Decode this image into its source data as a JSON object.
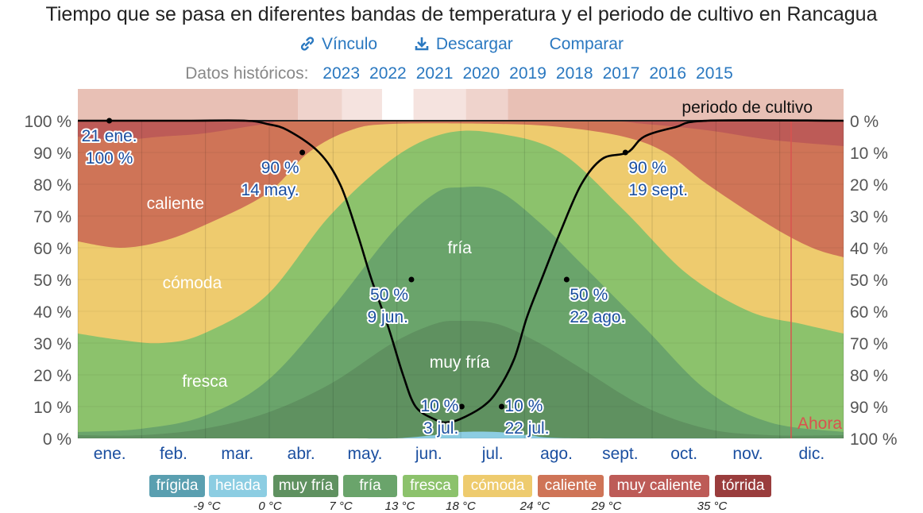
{
  "title": "Tiempo que se pasa en diferentes bandas de temperatura y el periodo de cultivo en Rancagua",
  "actions": {
    "link": "Vínculo",
    "download": "Descargar",
    "compare": "Comparar"
  },
  "historical": {
    "label": "Datos históricos:",
    "years": [
      "2023",
      "2022",
      "2021",
      "2020",
      "2019",
      "2018",
      "2017",
      "2016",
      "2015"
    ]
  },
  "colors": {
    "frigida": "#5a9fb0",
    "helada": "#8ccde2",
    "muy_fria": "#5f9160",
    "fria": "#6aa46b",
    "fresca": "#8cc26c",
    "comoda": "#eecb6e",
    "caliente": "#cf7457",
    "muy_caliente": "#bd5b57",
    "torrida": "#9a3d3d",
    "link": "#2a78c0",
    "now": "#d9534f"
  },
  "chart_data": {
    "type": "area",
    "title": "Tiempo que se pasa en diferentes bandas de temperatura y el periodo de cultivo en Rancagua",
    "categories": [
      "ene.",
      "feb.",
      "mar.",
      "abr.",
      "may.",
      "jun.",
      "jul.",
      "ago.",
      "sept.",
      "oct.",
      "nov.",
      "dic."
    ],
    "y_left_ticks": [
      "100 %",
      "90 %",
      "80 %",
      "70 %",
      "60 %",
      "50 %",
      "40 %",
      "30 %",
      "20 %",
      "10 %",
      "0 %"
    ],
    "y_right_ticks": [
      "0 %",
      "10 %",
      "20 %",
      "30 %",
      "40 %",
      "50 %",
      "60 %",
      "70 %",
      "80 %",
      "90 %",
      "100 %"
    ],
    "ylim": [
      0,
      100
    ],
    "x_day_range": [
      0,
      365
    ],
    "stack_order": [
      "helada",
      "muy_fria",
      "fria",
      "fresca",
      "comoda",
      "caliente",
      "muy_caliente"
    ],
    "cumulative_boundaries": [
      {
        "key": "helada",
        "points": [
          [
            0,
            0
          ],
          [
            120,
            0
          ],
          [
            150,
            0
          ],
          [
            170,
            1
          ],
          [
            182,
            2
          ],
          [
            200,
            2
          ],
          [
            215,
            1
          ],
          [
            240,
            0
          ],
          [
            365,
            0
          ]
        ]
      },
      {
        "key": "muy_fria",
        "points": [
          [
            0,
            1
          ],
          [
            30,
            1
          ],
          [
            60,
            3
          ],
          [
            90,
            8
          ],
          [
            120,
            17
          ],
          [
            150,
            30
          ],
          [
            170,
            36
          ],
          [
            182,
            37
          ],
          [
            200,
            36
          ],
          [
            220,
            30
          ],
          [
            240,
            22
          ],
          [
            270,
            10
          ],
          [
            300,
            3
          ],
          [
            330,
            1
          ],
          [
            365,
            1
          ]
        ]
      },
      {
        "key": "fria",
        "points": [
          [
            0,
            2
          ],
          [
            30,
            3
          ],
          [
            60,
            7
          ],
          [
            90,
            18
          ],
          [
            120,
            40
          ],
          [
            150,
            65
          ],
          [
            170,
            77
          ],
          [
            182,
            79
          ],
          [
            200,
            78
          ],
          [
            220,
            68
          ],
          [
            240,
            55
          ],
          [
            270,
            35
          ],
          [
            300,
            15
          ],
          [
            330,
            5
          ],
          [
            365,
            2
          ]
        ]
      },
      {
        "key": "fresca",
        "points": [
          [
            0,
            33
          ],
          [
            20,
            31
          ],
          [
            40,
            30
          ],
          [
            60,
            33
          ],
          [
            90,
            45
          ],
          [
            120,
            70
          ],
          [
            150,
            88
          ],
          [
            175,
            96
          ],
          [
            200,
            96
          ],
          [
            230,
            90
          ],
          [
            260,
            72
          ],
          [
            290,
            52
          ],
          [
            320,
            40
          ],
          [
            345,
            36
          ],
          [
            365,
            33
          ]
        ]
      },
      {
        "key": "comoda",
        "points": [
          [
            0,
            62
          ],
          [
            20,
            60
          ],
          [
            40,
            62
          ],
          [
            60,
            67
          ],
          [
            90,
            77
          ],
          [
            110,
            90
          ],
          [
            130,
            97
          ],
          [
            150,
            99
          ],
          [
            200,
            99
          ],
          [
            230,
            98
          ],
          [
            260,
            95
          ],
          [
            280,
            90
          ],
          [
            300,
            80
          ],
          [
            330,
            67
          ],
          [
            350,
            60
          ],
          [
            365,
            57
          ]
        ]
      },
      {
        "key": "caliente",
        "points": [
          [
            0,
            95
          ],
          [
            20,
            94
          ],
          [
            40,
            95
          ],
          [
            60,
            96
          ],
          [
            90,
            99
          ],
          [
            110,
            100
          ],
          [
            240,
            100
          ],
          [
            270,
            99
          ],
          [
            300,
            97
          ],
          [
            330,
            94
          ],
          [
            365,
            92
          ]
        ]
      },
      {
        "key": "muy_caliente",
        "points": [
          [
            0,
            100
          ],
          [
            365,
            100
          ]
        ]
      }
    ],
    "growing_season": {
      "label": "periodo de cultivo",
      "curve": [
        [
          0,
          100
        ],
        [
          50,
          100
        ],
        [
          80,
          100
        ],
        [
          90,
          99
        ],
        [
          100,
          97
        ],
        [
          115,
          90
        ],
        [
          125,
          80
        ],
        [
          133,
          65
        ],
        [
          140,
          50
        ],
        [
          148,
          35
        ],
        [
          155,
          20
        ],
        [
          161,
          10
        ],
        [
          170,
          6
        ],
        [
          175,
          5
        ],
        [
          182,
          6
        ],
        [
          193,
          10
        ],
        [
          200,
          15
        ],
        [
          208,
          25
        ],
        [
          214,
          38
        ],
        [
          221,
          50
        ],
        [
          230,
          65
        ],
        [
          240,
          80
        ],
        [
          250,
          88
        ],
        [
          262,
          90
        ],
        [
          270,
          95
        ],
        [
          285,
          98
        ],
        [
          300,
          100
        ],
        [
          365,
          100
        ]
      ],
      "top_bar": [
        {
          "from": 0,
          "to": 105,
          "level": "full"
        },
        {
          "from": 105,
          "to": 126,
          "level": "mid"
        },
        {
          "from": 126,
          "to": 145,
          "level": "light"
        },
        {
          "from": 145,
          "to": 160,
          "level": "none"
        },
        {
          "from": 160,
          "to": 185,
          "level": "light"
        },
        {
          "from": 185,
          "to": 205,
          "level": "mid"
        },
        {
          "from": 205,
          "to": 365,
          "level": "full"
        }
      ]
    },
    "annotations": [
      {
        "day": 15,
        "value": 100,
        "line1": "21 ene.",
        "line2": "100 %",
        "pos": "below"
      },
      {
        "day": 107,
        "value": 90,
        "line1": "90 %",
        "line2": "14 may.",
        "pos": "left"
      },
      {
        "day": 159,
        "value": 50,
        "line1": "50 %",
        "line2": "9 jun.",
        "pos": "left"
      },
      {
        "day": 183,
        "value": 10,
        "line1": "10 %",
        "line2": "3 jul.",
        "pos": "left"
      },
      {
        "day": 202,
        "value": 10,
        "line1": "10 %",
        "line2": "22 jul.",
        "pos": "right"
      },
      {
        "day": 233,
        "value": 50,
        "line1": "50 %",
        "line2": "22 ago.",
        "pos": "right"
      },
      {
        "day": 261,
        "value": 90,
        "line1": "90 %",
        "line2": "19 sept.",
        "pos": "right"
      }
    ],
    "band_labels": [
      {
        "text": "caliente",
        "day": 20,
        "value": 74
      },
      {
        "text": "cómoda",
        "day": 28,
        "value": 49
      },
      {
        "text": "fría",
        "day": 182,
        "value": 60
      },
      {
        "text": "muy fría",
        "day": 182,
        "value": 24
      },
      {
        "text": "fresca",
        "day": 34,
        "value": 18
      }
    ],
    "now": {
      "label": "Ahora",
      "day": 340
    }
  },
  "legend": {
    "items": [
      {
        "key": "frigida",
        "label": "frígida"
      },
      {
        "key": "helada",
        "label": "helada"
      },
      {
        "key": "muy_fria",
        "label": "muy fría"
      },
      {
        "key": "fria",
        "label": "fría"
      },
      {
        "key": "fresca",
        "label": "fresca"
      },
      {
        "key": "comoda",
        "label": "cómoda"
      },
      {
        "key": "caliente",
        "label": "caliente"
      },
      {
        "key": "muy_caliente",
        "label": "muy caliente"
      },
      {
        "key": "torrida",
        "label": "tórrida"
      }
    ],
    "thresholds": [
      "-9 °C",
      "0 °C",
      "7 °C",
      "13 °C",
      "18 °C",
      "24 °C",
      "29 °C",
      "35 °C"
    ]
  }
}
